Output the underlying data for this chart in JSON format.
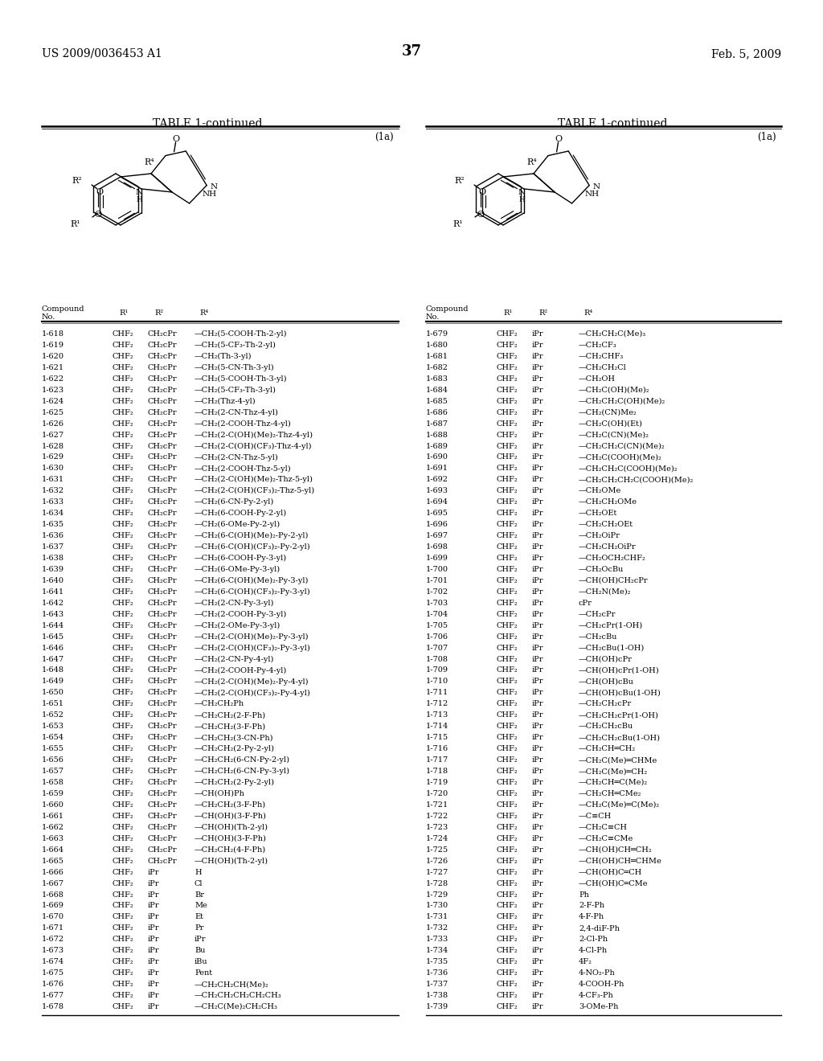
{
  "header_left": "US 2009/0036453 A1",
  "header_right": "Feb. 5, 2009",
  "page_number": "37",
  "table_title": "TABLE 1-continued",
  "formula_label": "(1a)",
  "bg_color": "#ffffff",
  "text_color": "#000000",
  "font_size": 7.0,
  "left_data": [
    [
      "1-618",
      "CHF₂",
      "CH₂cPr",
      "—CH₂(5-COOH-Th-2-yl)"
    ],
    [
      "1-619",
      "CHF₂",
      "CH₂cPr",
      "—CH₂(5-CF₃-Th-2-yl)"
    ],
    [
      "1-620",
      "CHF₂",
      "CH₂cPr",
      "—CH₂(Th-3-yl)"
    ],
    [
      "1-621",
      "CHF₂",
      "CH₂cPr",
      "—CH₂(5-CN-Th-3-yl)"
    ],
    [
      "1-622",
      "CHF₂",
      "CH₂cPr",
      "—CH₂(5-COOH-Th-3-yl)"
    ],
    [
      "1-623",
      "CHF₂",
      "CH₂cPr",
      "—CH₂(5-CF₃-Th-3-yl)"
    ],
    [
      "1-624",
      "CHF₂",
      "CH₂cPr",
      "—CH₂(Thz-4-yl)"
    ],
    [
      "1-625",
      "CHF₂",
      "CH₂cPr",
      "—CH₂(2-CN-Thz-4-yl)"
    ],
    [
      "1-626",
      "CHF₂",
      "CH₂cPr",
      "—CH₂(2-COOH-Thz-4-yl)"
    ],
    [
      "1-627",
      "CHF₂",
      "CH₂cPr",
      "—CH₂(2-C(OH)(Me)₂-Thz-4-yl)"
    ],
    [
      "1-628",
      "CHF₂",
      "CH₂cPr",
      "—CH₂(2-C(OH)(CF₃)-Thz-4-yl)"
    ],
    [
      "1-629",
      "CHF₂",
      "CH₂cPr",
      "—CH₂(2-CN-Thz-5-yl)"
    ],
    [
      "1-630",
      "CHF₂",
      "CH₂cPr",
      "—CH₂(2-COOH-Thz-5-yl)"
    ],
    [
      "1-631",
      "CHF₂",
      "CH₂cPr",
      "—CH₂(2-C(OH)(Me)₂-Thz-5-yl)"
    ],
    [
      "1-632",
      "CHF₂",
      "CH₂cPr",
      "—CH₂(2-C(OH)(CF₃)₂-Thz-5-yl)"
    ],
    [
      "1-633",
      "CHF₂",
      "CH₂cPr",
      "—CH₂(6-CN-Py-2-yl)"
    ],
    [
      "1-634",
      "CHF₂",
      "CH₂cPr",
      "—CH₂(6-COOH-Py-2-yl)"
    ],
    [
      "1-635",
      "CHF₂",
      "CH₂cPr",
      "—CH₂(6-OMe-Py-2-yl)"
    ],
    [
      "1-636",
      "CHF₂",
      "CH₂cPr",
      "—CH₂(6-C(OH)(Me)₂-Py-2-yl)"
    ],
    [
      "1-637",
      "CHF₂",
      "CH₂cPr",
      "—CH₂(6-C(OH)(CF₃)₂-Py-2-yl)"
    ],
    [
      "1-638",
      "CHF₂",
      "CH₂cPr",
      "—CH₂(6-COOH-Py-3-yl)"
    ],
    [
      "1-639",
      "CHF₂",
      "CH₂cPr",
      "—CH₂(6-OMe-Py-3-yl)"
    ],
    [
      "1-640",
      "CHF₂",
      "CH₂cPr",
      "—CH₂(6-C(OH)(Me)₂-Py-3-yl)"
    ],
    [
      "1-641",
      "CHF₂",
      "CH₂cPr",
      "—CH₂(6-C(OH)(CF₃)₂-Py-3-yl)"
    ],
    [
      "1-642",
      "CHF₂",
      "CH₂cPr",
      "—CH₂(2-CN-Py-3-yl)"
    ],
    [
      "1-643",
      "CHF₂",
      "CH₂cPr",
      "—CH₂(2-COOH-Py-3-yl)"
    ],
    [
      "1-644",
      "CHF₂",
      "CH₂cPr",
      "—CH₂(2-OMe-Py-3-yl)"
    ],
    [
      "1-645",
      "CHF₂",
      "CH₂cPr",
      "—CH₂(2-C(OH)(Me)₂-Py-3-yl)"
    ],
    [
      "1-646",
      "CHF₂",
      "CH₂cPr",
      "—CH₂(2-C(OH)(CF₃)₂-Py-3-yl)"
    ],
    [
      "1-647",
      "CHF₂",
      "CH₂cPr",
      "—CH₂(2-CN-Py-4-yl)"
    ],
    [
      "1-648",
      "CHF₂",
      "CH₂cPr",
      "—CH₂(2-COOH-Py-4-yl)"
    ],
    [
      "1-649",
      "CHF₂",
      "CH₂cPr",
      "—CH₂(2-C(OH)(Me)₂-Py-4-yl)"
    ],
    [
      "1-650",
      "CHF₂",
      "CH₂cPr",
      "—CH₂(2-C(OH)(CF₃)₂-Py-4-yl)"
    ],
    [
      "1-651",
      "CHF₂",
      "CH₂cPr",
      "—CH₂CH₂Ph"
    ],
    [
      "1-652",
      "CHF₂",
      "CH₂cPr",
      "—CH₂CH₂(2-F-Ph)"
    ],
    [
      "1-653",
      "CHF₂",
      "CH₂cPr",
      "—CH₂CH₂(3-F-Ph)"
    ],
    [
      "1-654",
      "CHF₂",
      "CH₂cPr",
      "—CH₂CH₂(3-CN-Ph)"
    ],
    [
      "1-655",
      "CHF₂",
      "CH₂cPr",
      "—CH₂CH₂(2-Py-2-yl)"
    ],
    [
      "1-656",
      "CHF₂",
      "CH₂cPr",
      "—CH₂CH₂(6-CN-Py-2-yl)"
    ],
    [
      "1-657",
      "CHF₂",
      "CH₂cPr",
      "—CH₂CH₂(6-CN-Py-3-yl)"
    ],
    [
      "1-658",
      "CHF₂",
      "CH₂cPr",
      "—CH₂CH₂(2-Py-2-yl)"
    ],
    [
      "1-659",
      "CHF₂",
      "CH₂cPr",
      "—CH(OH)Ph"
    ],
    [
      "1-660",
      "CHF₂",
      "CH₂cPr",
      "—CH₂CH₂(3-F-Ph)"
    ],
    [
      "1-661",
      "CHF₂",
      "CH₂cPr",
      "—CH(OH)(3-F-Ph)"
    ],
    [
      "1-662",
      "CHF₂",
      "CH₂cPr",
      "—CH(OH)(Th-2-yl)"
    ],
    [
      "1-663",
      "CHF₂",
      "CH₂cPr",
      "—CH(OH)(3-F-Ph)"
    ],
    [
      "1-664",
      "CHF₂",
      "CH₂cPr",
      "—CH₂CH₂(4-F-Ph)"
    ],
    [
      "1-665",
      "CHF₂",
      "CH₂cPr",
      "—CH(OH)(Th-2-yl)"
    ],
    [
      "1-666",
      "CHF₂",
      "iPr",
      "H"
    ],
    [
      "1-667",
      "CHF₂",
      "iPr",
      "Cl"
    ],
    [
      "1-668",
      "CHF₂",
      "iPr",
      "Br"
    ],
    [
      "1-669",
      "CHF₂",
      "iPr",
      "Me"
    ],
    [
      "1-670",
      "CHF₂",
      "iPr",
      "Et"
    ],
    [
      "1-671",
      "CHF₂",
      "iPr",
      "Pr"
    ],
    [
      "1-672",
      "CHF₂",
      "iPr",
      "iPr"
    ],
    [
      "1-673",
      "CHF₂",
      "iPr",
      "Bu"
    ],
    [
      "1-674",
      "CHF₂",
      "iPr",
      "iBu"
    ],
    [
      "1-675",
      "CHF₂",
      "iPr",
      "Pent"
    ],
    [
      "1-676",
      "CHF₂",
      "iPr",
      "—CH₂CH₂CH(Me)₂"
    ],
    [
      "1-677",
      "CHF₂",
      "iPr",
      "—CH₂CH₂CH₂CH₂CH₃"
    ],
    [
      "1-678",
      "CHF₂",
      "iPr",
      "—CH₂C(Me)₂CH₂CH₃"
    ]
  ],
  "right_data": [
    [
      "1-679",
      "CHF₂",
      "iPr",
      "—CH₂CH₂C(Me)₃"
    ],
    [
      "1-680",
      "CHF₂",
      "iPr",
      "—CH₂CF₃"
    ],
    [
      "1-681",
      "CHF₂",
      "iPr",
      "—CH₂CHF₃"
    ],
    [
      "1-682",
      "CHF₂",
      "iPr",
      "—CH₂CH₂Cl"
    ],
    [
      "1-683",
      "CHF₂",
      "iPr",
      "—CH₂OH"
    ],
    [
      "1-684",
      "CHF₂",
      "iPr",
      "—CH₂C(OH)(Me)₂"
    ],
    [
      "1-685",
      "CHF₂",
      "iPr",
      "—CH₂CH₂C(OH)(Me)₂"
    ],
    [
      "1-686",
      "CHF₂",
      "iPr",
      "—CH₂(CN)Me₂"
    ],
    [
      "1-687",
      "CHF₂",
      "iPr",
      "—CH₂C(OH)(Et)"
    ],
    [
      "1-688",
      "CHF₂",
      "iPr",
      "—CH₂C(CN)(Me)₂"
    ],
    [
      "1-689",
      "CHF₂",
      "iPr",
      "—CH₂CH₂C(CN)(Me)₂"
    ],
    [
      "1-690",
      "CHF₂",
      "iPr",
      "—CH₂C(COOH)(Me)₂"
    ],
    [
      "1-691",
      "CHF₂",
      "iPr",
      "—CH₂CH₂C(COOH)(Me)₂"
    ],
    [
      "1-692",
      "CHF₂",
      "iPr",
      "—CH₂CH₂CH₂C(COOH)(Me)₂"
    ],
    [
      "1-693",
      "CHF₂",
      "iPr",
      "—CH₂OMe"
    ],
    [
      "1-694",
      "CHF₂",
      "iPr",
      "—CH₂CH₂OMe"
    ],
    [
      "1-695",
      "CHF₂",
      "iPr",
      "—CH₂OEt"
    ],
    [
      "1-696",
      "CHF₂",
      "iPr",
      "—CH₂CH₂OEt"
    ],
    [
      "1-697",
      "CHF₂",
      "iPr",
      "—CH₂OiPr"
    ],
    [
      "1-698",
      "CHF₂",
      "iPr",
      "—CH₂CH₂OiPr"
    ],
    [
      "1-699",
      "CHF₂",
      "iPr",
      "—CH₂OCH₂CHF₂"
    ],
    [
      "1-700",
      "CHF₂",
      "iPr",
      "—CH₂OcBu"
    ],
    [
      "1-701",
      "CHF₂",
      "iPr",
      "—CH(OH)CH₂cPr"
    ],
    [
      "1-702",
      "CHF₂",
      "iPr",
      "—CH₂N(Me)₂"
    ],
    [
      "1-703",
      "CHF₂",
      "iPr",
      "cPr"
    ],
    [
      "1-704",
      "CHF₂",
      "iPr",
      "—CH₂cPr"
    ],
    [
      "1-705",
      "CHF₂",
      "iPr",
      "—CH₂cPr(1-OH)"
    ],
    [
      "1-706",
      "CHF₂",
      "iPr",
      "—CH₂cBu"
    ],
    [
      "1-707",
      "CHF₂",
      "iPr",
      "—CH₂cBu(1-OH)"
    ],
    [
      "1-708",
      "CHF₂",
      "iPr",
      "—CH(OH)cPr"
    ],
    [
      "1-709",
      "CHF₂",
      "iPr",
      "—CH(OH)cPr(1-OH)"
    ],
    [
      "1-710",
      "CHF₂",
      "iPr",
      "—CH(OH)cBu"
    ],
    [
      "1-711",
      "CHF₂",
      "iPr",
      "—CH(OH)cBu(1-OH)"
    ],
    [
      "1-712",
      "CHF₂",
      "iPr",
      "—CH₂CH₂cPr"
    ],
    [
      "1-713",
      "CHF₂",
      "iPr",
      "—CH₂CH₂cPr(1-OH)"
    ],
    [
      "1-714",
      "CHF₂",
      "iPr",
      "—CH₂CH₂cBu"
    ],
    [
      "1-715",
      "CHF₂",
      "iPr",
      "—CH₂CH₂cBu(1-OH)"
    ],
    [
      "1-716",
      "CHF₂",
      "iPr",
      "—CH₂CH═CH₂"
    ],
    [
      "1-717",
      "CHF₂",
      "iPr",
      "—CH₂C(Me)═CHMe"
    ],
    [
      "1-718",
      "CHF₂",
      "iPr",
      "—CH₂C(Me)═CH₂"
    ],
    [
      "1-719",
      "CHF₂",
      "iPr",
      "—CH₂CH═C(Me)₂"
    ],
    [
      "1-720",
      "CHF₂",
      "iPr",
      "—CH₂CH═CMe₂"
    ],
    [
      "1-721",
      "CHF₂",
      "iPr",
      "—CH₂C(Me)═C(Me)₂"
    ],
    [
      "1-722",
      "CHF₂",
      "iPr",
      "—C≡CH"
    ],
    [
      "1-723",
      "CHF₂",
      "iPr",
      "—CH₂C≡CH"
    ],
    [
      "1-724",
      "CHF₂",
      "iPr",
      "—CH₂C≡CMe"
    ],
    [
      "1-725",
      "CHF₂",
      "iPr",
      "—CH(OH)CH═CH₂"
    ],
    [
      "1-726",
      "CHF₂",
      "iPr",
      "—CH(OH)CH═CHMe"
    ],
    [
      "1-727",
      "CHF₂",
      "iPr",
      "—CH(OH)C═CH"
    ],
    [
      "1-728",
      "CHF₂",
      "iPr",
      "—CH(OH)C═CMe"
    ],
    [
      "1-729",
      "CHF₂",
      "iPr",
      "Ph"
    ],
    [
      "1-730",
      "CHF₂",
      "iPr",
      "2-F-Ph"
    ],
    [
      "1-731",
      "CHF₂",
      "iPr",
      "4-F-Ph"
    ],
    [
      "1-732",
      "CHF₂",
      "iPr",
      "2,4-diF-Ph"
    ],
    [
      "1-733",
      "CHF₂",
      "iPr",
      "2-Cl-Ph"
    ],
    [
      "1-734",
      "CHF₂",
      "iPr",
      "4-Cl-Ph"
    ],
    [
      "1-735",
      "CHF₂",
      "iPr",
      "4F₂"
    ],
    [
      "1-736",
      "CHF₂",
      "iPr",
      "4-NO₂-Ph"
    ],
    [
      "1-737",
      "CHF₂",
      "iPr",
      "4-COOH-Ph"
    ],
    [
      "1-738",
      "CHF₂",
      "iPr",
      "4-CF₃-Ph"
    ],
    [
      "1-739",
      "CHF₂",
      "iPr",
      "3-OMe-Ph"
    ]
  ]
}
